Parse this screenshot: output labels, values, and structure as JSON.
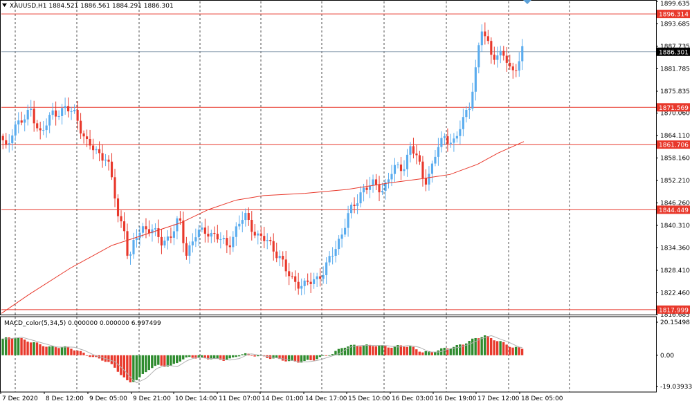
{
  "header": {
    "symbol_line": "XAUUSD,H1  1884.521 1886.561 1884.291 1886.301"
  },
  "macd": {
    "label": "MACD_color(5,34,5) 0.000000 0.000000 6.997499",
    "axis_labels": [
      "20.15498",
      "0.00",
      "-19.03933"
    ]
  },
  "colors": {
    "bull": "#5aacee",
    "bear": "#e8382b",
    "ma": "#e8382b",
    "hline": "#e8382b",
    "macd_up": "#2e8b2e",
    "macd_down": "#e8382b",
    "signal": "#b0b0b0",
    "current_price_bg": "#000000"
  },
  "chart_data": {
    "type": "candlestick",
    "symbol": "XAUUSD",
    "timeframe": "H1",
    "ylim": [
      1816.685,
      1899.635
    ],
    "y_ticks": [
      "1899.635",
      "1893.685",
      "1887.735",
      "1881.785",
      "1875.835",
      "1870.060",
      "1864.110",
      "1858.160",
      "1852.210",
      "1846.260",
      "1840.310",
      "1834.360",
      "1828.410",
      "1822.460",
      "1816.685"
    ],
    "x_ticks": [
      "7 Dec 2020",
      "8 Dec 12:00",
      "9 Dec 05:00",
      "9 Dec 21:00",
      "10 Dec 14:00",
      "11 Dec 07:00",
      "14 Dec 01:00",
      "14 Dec 17:00",
      "15 Dec 10:00",
      "16 Dec 03:00",
      "16 Dec 19:00",
      "17 Dec 12:00",
      "18 Dec 05:00"
    ],
    "horizontal_levels": [
      {
        "label": "1896.314",
        "value": 1896.314
      },
      {
        "label": "1871.569",
        "value": 1871.569
      },
      {
        "label": "1861.706",
        "value": 1861.706
      },
      {
        "label": "1844.449",
        "value": 1844.449
      },
      {
        "label": "1817.999",
        "value": 1817.999
      }
    ],
    "current_price": {
      "label": "1886.301",
      "value": 1886.301
    },
    "ma_points": [
      [
        0,
        1817.0
      ],
      [
        40,
        1822.0
      ],
      [
        100,
        1829.0
      ],
      [
        160,
        1835.0
      ],
      [
        210,
        1838.0
      ],
      [
        260,
        1841.0
      ],
      [
        300,
        1844.5
      ],
      [
        340,
        1847.0
      ],
      [
        380,
        1848.2
      ],
      [
        440,
        1848.8
      ],
      [
        500,
        1849.8
      ],
      [
        560,
        1851.5
      ],
      [
        610,
        1852.7
      ],
      [
        650,
        1853.8
      ],
      [
        690,
        1856.5
      ],
      [
        720,
        1859.5
      ],
      [
        757,
        1862.5
      ]
    ],
    "price_anchors": [
      [
        0,
        1864.0
      ],
      [
        10,
        1860.0
      ],
      [
        20,
        1867.0
      ],
      [
        35,
        1868.0
      ],
      [
        45,
        1871.0
      ],
      [
        60,
        1864.0
      ],
      [
        75,
        1870.0
      ],
      [
        95,
        1871.0
      ],
      [
        110,
        1870.0
      ],
      [
        125,
        1862.0
      ],
      [
        140,
        1860.0
      ],
      [
        155,
        1858.0
      ],
      [
        165,
        1850.0
      ],
      [
        172,
        1842.0
      ],
      [
        180,
        1840.0
      ],
      [
        187,
        1830.0
      ],
      [
        195,
        1836.0
      ],
      [
        205,
        1840.0
      ],
      [
        220,
        1839.0
      ],
      [
        235,
        1836.0
      ],
      [
        250,
        1838.0
      ],
      [
        260,
        1842.0
      ],
      [
        270,
        1833.0
      ],
      [
        285,
        1838.0
      ],
      [
        300,
        1839.0
      ],
      [
        315,
        1837.0
      ],
      [
        330,
        1835.0
      ],
      [
        345,
        1840.0
      ],
      [
        355,
        1843.0
      ],
      [
        365,
        1840.0
      ],
      [
        375,
        1837.0
      ],
      [
        390,
        1836.0
      ],
      [
        405,
        1832.0
      ],
      [
        415,
        1828.0
      ],
      [
        425,
        1826.0
      ],
      [
        440,
        1824.0
      ],
      [
        455,
        1826.0
      ],
      [
        470,
        1828.0
      ],
      [
        480,
        1832.0
      ],
      [
        495,
        1838.0
      ],
      [
        505,
        1843.0
      ],
      [
        515,
        1846.0
      ],
      [
        525,
        1850.0
      ],
      [
        540,
        1851.0
      ],
      [
        555,
        1850.0
      ],
      [
        570,
        1855.0
      ],
      [
        585,
        1856.0
      ],
      [
        595,
        1861.0
      ],
      [
        605,
        1858.0
      ],
      [
        615,
        1852.0
      ],
      [
        625,
        1855.0
      ],
      [
        635,
        1861.0
      ],
      [
        645,
        1864.0
      ],
      [
        660,
        1862.0
      ],
      [
        670,
        1868.0
      ],
      [
        680,
        1872.0
      ],
      [
        690,
        1882.0
      ],
      [
        698,
        1892.0
      ],
      [
        705,
        1890.0
      ],
      [
        712,
        1886.0
      ],
      [
        722,
        1885.0
      ],
      [
        732,
        1885.0
      ],
      [
        742,
        1881.0
      ],
      [
        750,
        1883.0
      ],
      [
        757,
        1886.3
      ]
    ],
    "macd_ylim": [
      -19.03933,
      20.15498
    ],
    "macd_anchors": [
      [
        0,
        10
      ],
      [
        20,
        11
      ],
      [
        45,
        8
      ],
      [
        70,
        5
      ],
      [
        95,
        5
      ],
      [
        110,
        3
      ],
      [
        125,
        0
      ],
      [
        140,
        -2
      ],
      [
        155,
        -4
      ],
      [
        170,
        -10
      ],
      [
        185,
        -17
      ],
      [
        200,
        -14
      ],
      [
        215,
        -8
      ],
      [
        230,
        -6
      ],
      [
        245,
        -7
      ],
      [
        260,
        -3
      ],
      [
        275,
        -1
      ],
      [
        290,
        -2
      ],
      [
        305,
        -2
      ],
      [
        320,
        -3
      ],
      [
        335,
        -2
      ],
      [
        350,
        1
      ],
      [
        365,
        0
      ],
      [
        380,
        -1
      ],
      [
        395,
        -2
      ],
      [
        410,
        -3
      ],
      [
        420,
        -4
      ],
      [
        435,
        -4
      ],
      [
        450,
        -3
      ],
      [
        465,
        -1
      ],
      [
        480,
        1
      ],
      [
        495,
        5
      ],
      [
        510,
        6
      ],
      [
        525,
        6
      ],
      [
        545,
        6
      ],
      [
        565,
        5
      ],
      [
        580,
        6
      ],
      [
        595,
        5
      ],
      [
        610,
        2
      ],
      [
        625,
        2
      ],
      [
        640,
        4
      ],
      [
        655,
        5
      ],
      [
        670,
        7
      ],
      [
        685,
        10
      ],
      [
        700,
        12
      ],
      [
        712,
        10
      ],
      [
        725,
        8
      ],
      [
        740,
        5
      ],
      [
        757,
        4
      ]
    ]
  }
}
